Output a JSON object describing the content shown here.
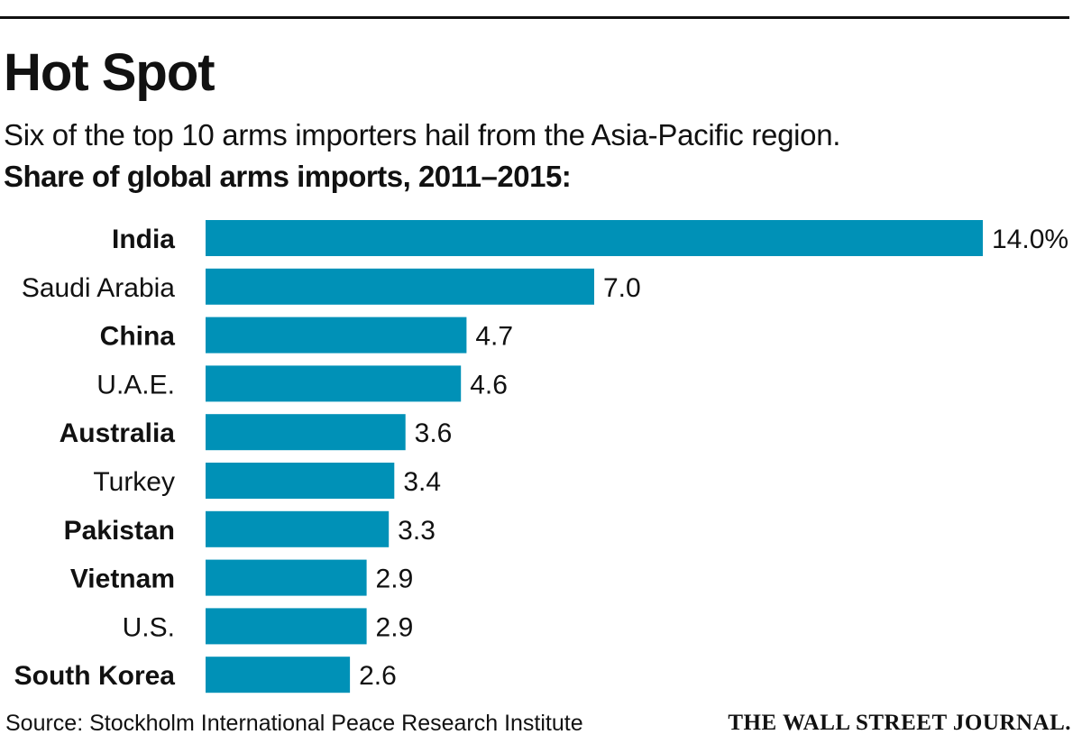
{
  "header": {
    "title": "Hot Spot",
    "subtitle": "Six of the top 10 arms importers hail from the Asia-Pacific region.",
    "unit_label": "Share of global arms imports, 2011–2015:"
  },
  "footer": {
    "source": "Source: Stockholm International Peace Research Institute",
    "masthead": "THE WALL STREET JOURNAL."
  },
  "colors": {
    "bar": "#0091b7",
    "text": "#111111",
    "rule": "#111111"
  },
  "chart_data": {
    "type": "bar",
    "orientation": "horizontal",
    "title": "Hot Spot",
    "xlabel": "",
    "ylabel": "",
    "xlim": [
      0,
      14
    ],
    "grid": false,
    "legend": "none",
    "categories": [
      "India",
      "Saudi Arabia",
      "China",
      "U.A.E.",
      "Australia",
      "Turkey",
      "Pakistan",
      "Vietnam",
      "U.S.",
      "South Korea"
    ],
    "values": [
      14.0,
      7.0,
      4.7,
      4.6,
      3.6,
      3.4,
      3.3,
      2.9,
      2.9,
      2.6
    ],
    "value_labels": [
      "14.0%",
      "7.0",
      "4.7",
      "4.6",
      "3.6",
      "3.4",
      "3.3",
      "2.9",
      "2.9",
      "2.6"
    ],
    "asia_pacific": [
      true,
      false,
      true,
      false,
      true,
      false,
      true,
      true,
      false,
      true
    ]
  }
}
